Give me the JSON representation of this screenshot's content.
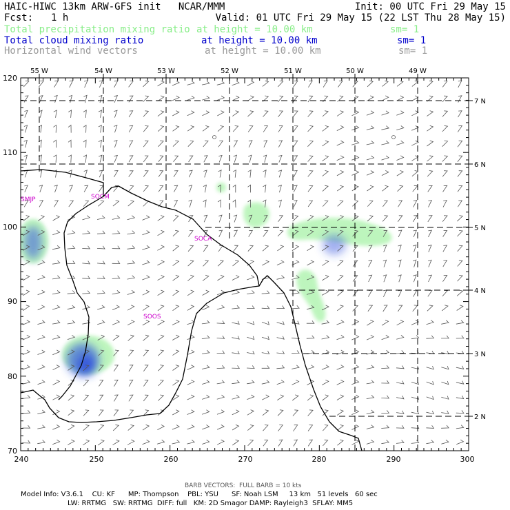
{
  "header": {
    "title": "HAIC-HIWC 13km ARW-GFS init   NCAR/MMM",
    "init": "Init: 00 UTC Fri 29 May 15",
    "fcst_label": "Fcst:",
    "fcst_value": "1 h",
    "valid": "Valid: 01 UTC Fri 29 May 15 (22 LST Thu 28 May 15)",
    "fields": [
      {
        "name": "Total precipitation mixing ratio",
        "height": "at height = 10.00 km",
        "sm": "sm= 1",
        "color": "#88ee88"
      },
      {
        "name": "Total cloud mixing ratio",
        "height": "at height = 10.00 km",
        "sm": "sm= 1",
        "color": "#0000cc"
      },
      {
        "name": "Horizontal wind vectors",
        "height": "at height = 10.00 km",
        "sm": "sm= 1",
        "color": "#999999"
      }
    ]
  },
  "map": {
    "x_ticks": [
      "240",
      "250",
      "260",
      "270",
      "280",
      "290",
      "300"
    ],
    "y_ticks": [
      "70",
      "80",
      "90",
      "100",
      "110",
      "120"
    ],
    "lon_labels": [
      "55 W",
      "54 W",
      "53 W",
      "52 W",
      "51 W",
      "50 W",
      "49 W"
    ],
    "lat_labels": [
      "7 N",
      "6 N",
      "5 N",
      "4 N",
      "3 N",
      "2 N"
    ],
    "stations": [
      "SMJP",
      "SOCM",
      "SOCA",
      "SOOS"
    ],
    "colors": {
      "precip": "#88ee88",
      "cloud": "#3355dd",
      "station": "#cc00cc",
      "barb": "#555555"
    }
  },
  "footer": {
    "barb_note": "BARB VECTORS:  FULL BARB = 10 kts",
    "line1": "Model Info: V3.6.1    CU: KF      MP: Thompson    PBL: YSU      SF: Noah LSM     13 km   51 levels   60 sec",
    "line2": "LW: RRTMG   SW: RRTMG  DIFF: full   KM: 2D Smagor DAMP: Rayleigh3  SFLAY: MM5"
  }
}
